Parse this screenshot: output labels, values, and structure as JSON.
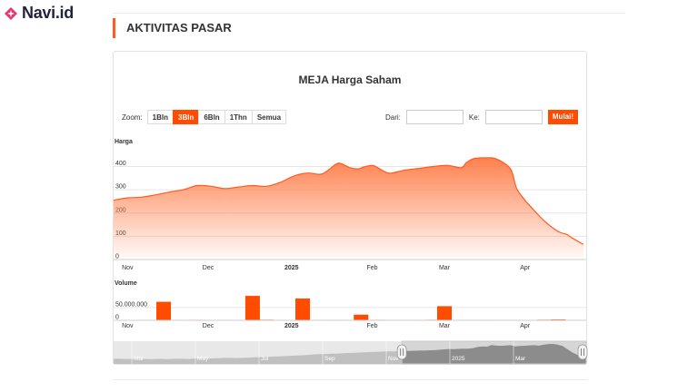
{
  "brand": {
    "name": "Navi.id",
    "accent": "#e8336d"
  },
  "section": {
    "title": "AKTIVITAS PASAR"
  },
  "chart": {
    "title": "MEJA Harga Saham"
  },
  "zoom": {
    "label": "Zoom:",
    "buttons": [
      "1Bln",
      "3Bln",
      "6Bln",
      "1Thn",
      "Semua"
    ],
    "active": "3Bln"
  },
  "range": {
    "from_label": "Dari:",
    "to_label": "Ke:",
    "from_value": "",
    "to_value": "",
    "go_label": "Mulai!"
  },
  "chart_data": {
    "type": "area",
    "price_panel": {
      "label": "Harga",
      "ylim": [
        0,
        480
      ],
      "yticks": [
        0,
        100,
        200,
        300,
        400
      ],
      "xlim": [
        0,
        170
      ],
      "x_ticks": [
        {
          "label": "Nov",
          "x": 5,
          "bold": false
        },
        {
          "label": "Dec",
          "x": 34,
          "bold": false
        },
        {
          "label": "2025",
          "x": 64,
          "bold": true
        },
        {
          "label": "Feb",
          "x": 93,
          "bold": false
        },
        {
          "label": "Mar",
          "x": 119,
          "bold": false
        },
        {
          "label": "Apr",
          "x": 148,
          "bold": false
        }
      ],
      "x": [
        0,
        5,
        10,
        15,
        20,
        25,
        30,
        35,
        40,
        45,
        50,
        55,
        60,
        65,
        70,
        75,
        80,
        82,
        85,
        88,
        90,
        93,
        95,
        98,
        100,
        105,
        110,
        115,
        120,
        125,
        127,
        130,
        135,
        137,
        140,
        143,
        145,
        148,
        150,
        155,
        160,
        163,
        165,
        169
      ],
      "values": [
        255,
        265,
        268,
        278,
        290,
        300,
        318,
        315,
        305,
        312,
        318,
        315,
        332,
        360,
        372,
        368,
        410,
        412,
        395,
        390,
        398,
        405,
        395,
        375,
        372,
        385,
        392,
        400,
        405,
        395,
        418,
        435,
        438,
        435,
        418,
        385,
        305,
        255,
        228,
        165,
        120,
        108,
        92,
        65
      ]
    },
    "volume_panel": {
      "label": "Volume",
      "ylim": [
        0,
        120000000
      ],
      "yticks": [
        0,
        50000000
      ],
      "ytick_labels": [
        "0",
        "50.000.000"
      ],
      "x": [
        18,
        50,
        68,
        89,
        119
      ],
      "values": [
        72000000,
        95000000,
        85000000,
        22000000,
        55000000
      ],
      "tiny_x": [
        5,
        10,
        25,
        30,
        35,
        40,
        45,
        55,
        60,
        75,
        80,
        85,
        95,
        100,
        105,
        110,
        115,
        125,
        130,
        135,
        140,
        145,
        155,
        160,
        165
      ],
      "tiny_values": [
        1500000,
        1000000,
        1500000,
        2000000,
        1000000,
        1500000,
        1000000,
        2500000,
        1500000,
        1200000,
        1800000,
        1000000,
        2000000,
        1500000,
        1000000,
        1800000,
        2200000,
        1500000,
        1000000,
        1800000,
        1500000,
        1200000,
        2500000,
        3500000,
        1500000
      ]
    },
    "navigator": {
      "labels": [
        "Mar",
        "May",
        "Jul",
        "Sep",
        "Nov",
        "2025",
        "Mar"
      ],
      "values": [
        60,
        62,
        58,
        55,
        57,
        60,
        58,
        56,
        52,
        55,
        58,
        54,
        56,
        60,
        62,
        58,
        55,
        62,
        66,
        70,
        68,
        72,
        76,
        80,
        84,
        82,
        78,
        82,
        88,
        92,
        96,
        102,
        105,
        112,
        118,
        122,
        128,
        132,
        138,
        142,
        150,
        160,
        170,
        175,
        178,
        182,
        188,
        192,
        196,
        205,
        210,
        215,
        218,
        225,
        230,
        235,
        240,
        245,
        250,
        248,
        252,
        255,
        258,
        262,
        265,
        270,
        272,
        276,
        280,
        290,
        300,
        308,
        305,
        312,
        318,
        315,
        330,
        360,
        372,
        368,
        410,
        395,
        390,
        398,
        405,
        375,
        385,
        392,
        400,
        405,
        395,
        418,
        435,
        438,
        418,
        385,
        305,
        228,
        165,
        108,
        65
      ],
      "window_start": 0.61,
      "window_end": 1.0
    },
    "colors": {
      "line": "#ff5a1f",
      "bar": "#ff4c00"
    }
  }
}
